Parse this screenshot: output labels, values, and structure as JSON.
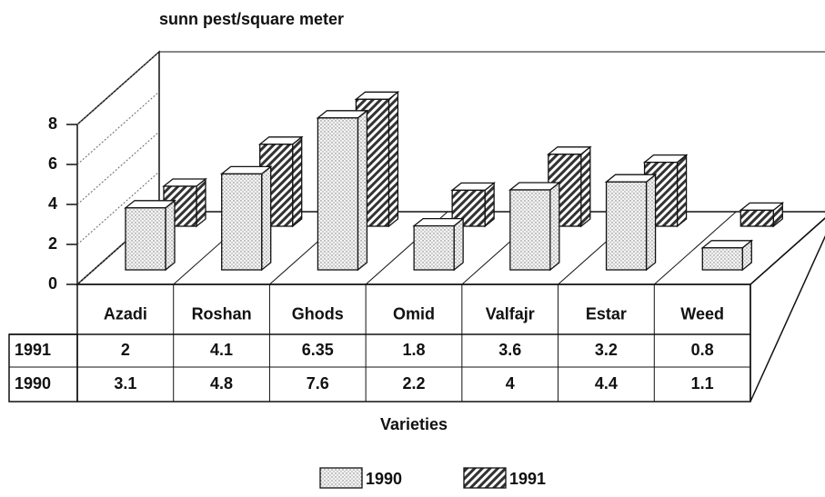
{
  "chart_data": {
    "type": "bar3d",
    "title": "sunn pest/square meter",
    "x_label": "Varieties",
    "categories": [
      "Azadi",
      "Roshan",
      "Ghods",
      "Omid",
      "Valfajr",
      "Estar",
      "Weed"
    ],
    "series": [
      {
        "name": "1990",
        "color": "#f2f2f2",
        "values": [
          3.1,
          4.8,
          7.6,
          2.2,
          4,
          4.4,
          1.1
        ]
      },
      {
        "name": "1991",
        "color": "#444444",
        "values": [
          2,
          4.1,
          6.35,
          1.8,
          3.6,
          3.2,
          0.8
        ]
      }
    ],
    "ylim": [
      0,
      8
    ],
    "yticks": [
      0,
      2,
      4,
      6,
      8
    ],
    "grid": true
  }
}
